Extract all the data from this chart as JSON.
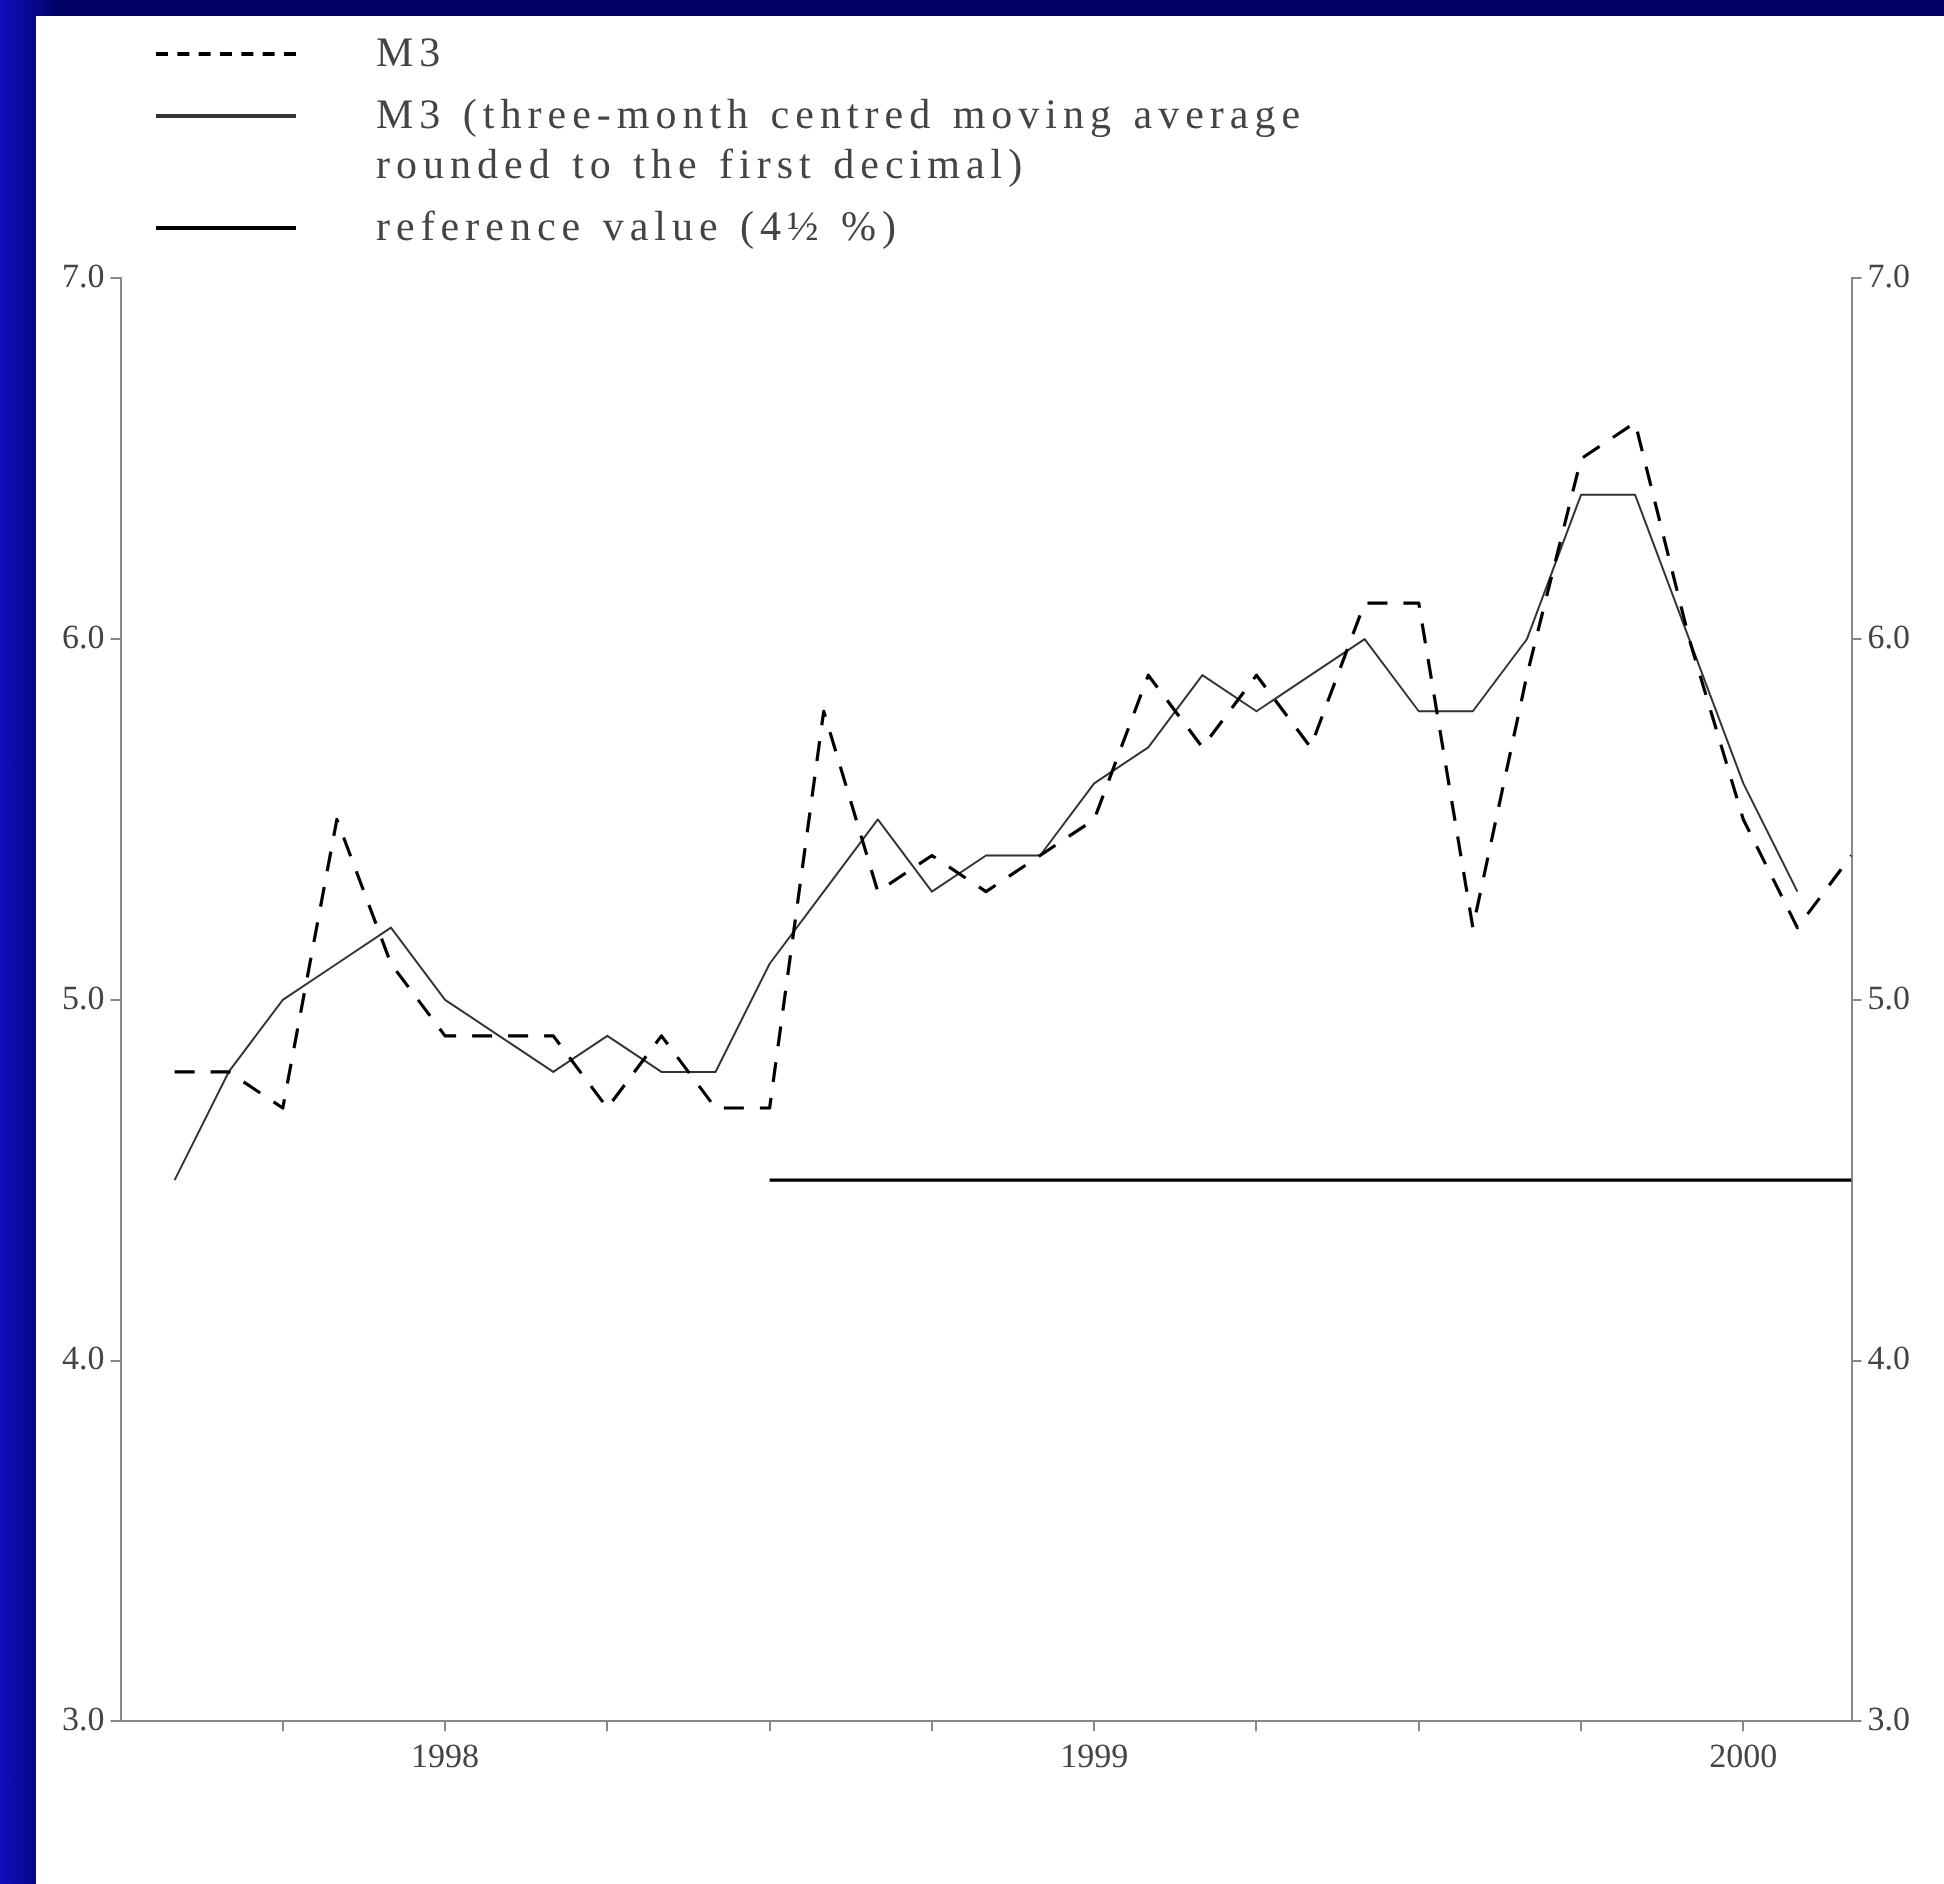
{
  "chart_data": {
    "type": "line",
    "legend": "top left",
    "marker": "none",
    "x": [
      "1998-01",
      "1998-02",
      "1998-03",
      "1998-04",
      "1998-05",
      "1998-06",
      "1998-07",
      "1998-08",
      "1998-09",
      "1998-10",
      "1998-11",
      "1998-12",
      "1999-01",
      "1999-02",
      "1999-03",
      "1999-04",
      "1999-05",
      "1999-06",
      "1999-07",
      "1999-08",
      "1999-09",
      "1999-10",
      "1999-11",
      "1999-12",
      "2000-01",
      "2000-02",
      "2000-03",
      "2000-04",
      "2000-05",
      "2000-06",
      "2000-07",
      "2000-08"
    ],
    "series": [
      {
        "name": "M3",
        "color": "#000000",
        "line_style": "dashed",
        "values": [
          4.8,
          4.8,
          4.7,
          5.5,
          5.1,
          4.9,
          4.9,
          4.9,
          4.7,
          4.9,
          4.7,
          4.7,
          5.8,
          5.3,
          5.4,
          5.3,
          5.4,
          5.5,
          5.9,
          5.7,
          5.9,
          5.7,
          6.1,
          6.1,
          5.2,
          5.9,
          6.5,
          6.6,
          6.0,
          5.5,
          5.2,
          5.4
        ]
      },
      {
        "name": "M3 (three-month centred moving average rounded to the first decimal)",
        "color": "#333333",
        "line_style": "solid",
        "values": [
          4.5,
          4.8,
          5.0,
          5.1,
          5.2,
          5.0,
          4.9,
          4.8,
          4.9,
          4.8,
          4.8,
          5.1,
          5.3,
          5.5,
          5.3,
          5.4,
          5.4,
          5.6,
          5.7,
          5.9,
          5.8,
          5.9,
          6.0,
          5.8,
          5.8,
          6.0,
          6.4,
          6.4,
          6.0,
          5.6,
          5.3,
          null
        ]
      },
      {
        "name": "reference value (4½ %)",
        "color": "#000000",
        "line_style": "solid",
        "x": [
          "1998-12",
          "2000-08"
        ],
        "values": [
          4.5,
          4.5
        ]
      }
    ],
    "xlim": [
      "1997-12",
      "2000-08"
    ],
    "xticks": [
      {
        "value": "1998-03",
        "label": null
      },
      {
        "value": "1998-06",
        "label": "1998"
      },
      {
        "value": "1998-09",
        "label": null
      },
      {
        "value": "1998-12",
        "label": null
      },
      {
        "value": "1999-03",
        "label": null
      },
      {
        "value": "1999-06",
        "label": "1999"
      },
      {
        "value": "1999-09",
        "label": null
      },
      {
        "value": "1999-12",
        "label": null
      },
      {
        "value": "2000-03",
        "label": null
      },
      {
        "value": "2000-06",
        "label": "2000"
      }
    ],
    "ylim": [
      3.0,
      7.0
    ],
    "yticks": [
      {
        "value": 3,
        "label": "3.0"
      },
      {
        "value": 4,
        "label": "4.0"
      },
      {
        "value": 5,
        "label": "5.0"
      },
      {
        "value": 6,
        "label": "6.0"
      },
      {
        "value": 7,
        "label": "7.0"
      }
    ],
    "y2lim": [
      3.0,
      7.0
    ],
    "y2ticks": [
      {
        "value": 3,
        "label": "3.0"
      },
      {
        "value": 4,
        "label": "4.0"
      },
      {
        "value": 5,
        "label": "5.0"
      },
      {
        "value": 6,
        "label": "6.0"
      },
      {
        "value": 7,
        "label": "7.0"
      }
    ]
  }
}
